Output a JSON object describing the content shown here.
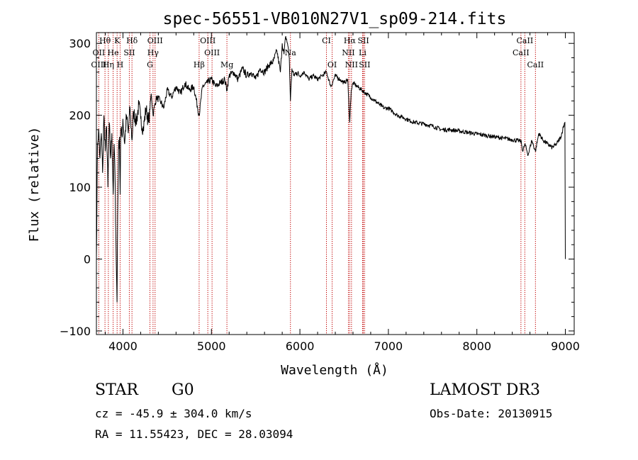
{
  "chart_data": {
    "type": "line",
    "title": "spec-56551-VB010N27V1_sp09-214.fits",
    "xlabel": "Wavelength (Å)",
    "ylabel": "Flux (relative)",
    "xlim": [
      3700,
      9100
    ],
    "ylim": [
      -105,
      315
    ],
    "xticks": [
      4000,
      5000,
      6000,
      7000,
      8000,
      9000
    ],
    "yticks": [
      -100,
      0,
      100,
      200,
      300
    ],
    "series": [
      {
        "name": "flux",
        "x": [
          3700,
          3712,
          3725,
          3740,
          3755,
          3770,
          3785,
          3800,
          3815,
          3830,
          3845,
          3860,
          3875,
          3890,
          3900,
          3910,
          3920,
          3933,
          3940,
          3950,
          3960,
          3968,
          3975,
          3990,
          4000,
          4020,
          4040,
          4060,
          4080,
          4102,
          4120,
          4150,
          4180,
          4200,
          4230,
          4260,
          4290,
          4320,
          4340,
          4360,
          4380,
          4420,
          4460,
          4500,
          4550,
          4600,
          4650,
          4700,
          4750,
          4800,
          4861,
          4900,
          4950,
          5000,
          5050,
          5100,
          5150,
          5175,
          5200,
          5250,
          5300,
          5350,
          5400,
          5450,
          5500,
          5550,
          5600,
          5650,
          5700,
          5740,
          5780,
          5800,
          5820,
          5840,
          5860,
          5880,
          5893,
          5910,
          5930,
          5960,
          6000,
          6050,
          6100,
          6150,
          6200,
          6250,
          6300,
          6350,
          6400,
          6450,
          6500,
          6540,
          6563,
          6580,
          6600,
          6650,
          6700,
          6750,
          6800,
          6850,
          6900,
          6950,
          7000,
          7050,
          7100,
          7150,
          7200,
          7250,
          7300,
          7400,
          7500,
          7600,
          7700,
          7800,
          7900,
          8000,
          8100,
          8200,
          8300,
          8400,
          8498,
          8520,
          8542,
          8580,
          8620,
          8662,
          8700,
          8750,
          8800,
          8850,
          8900,
          8950,
          8980,
          8995,
          9000
        ],
        "y": [
          0,
          160,
          180,
          140,
          175,
          120,
          200,
          150,
          185,
          100,
          190,
          140,
          175,
          90,
          160,
          120,
          30,
          -60,
          60,
          150,
          170,
          90,
          180,
          170,
          195,
          160,
          200,
          175,
          210,
          165,
          205,
          190,
          215,
          195,
          180,
          210,
          190,
          230,
          200,
          215,
          225,
          220,
          210,
          235,
          225,
          240,
          230,
          245,
          235,
          240,
          200,
          240,
          245,
          250,
          240,
          245,
          250,
          235,
          255,
          260,
          250,
          265,
          255,
          260,
          250,
          265,
          260,
          270,
          275,
          290,
          260,
          300,
          285,
          310,
          300,
          280,
          220,
          265,
          255,
          260,
          255,
          260,
          250,
          255,
          250,
          255,
          260,
          240,
          255,
          250,
          245,
          250,
          190,
          235,
          245,
          240,
          235,
          230,
          225,
          220,
          215,
          210,
          210,
          205,
          200,
          198,
          195,
          192,
          190,
          188,
          185,
          180,
          180,
          178,
          176,
          174,
          172,
          170,
          168,
          166,
          164,
          150,
          160,
          145,
          165,
          150,
          175,
          165,
          160,
          155,
          160,
          170,
          185,
          190,
          0
        ]
      }
    ],
    "lines": [
      {
        "label": "Hθ",
        "x": 3797,
        "row": 0
      },
      {
        "label": "K",
        "x": 3934,
        "row": 0
      },
      {
        "label": "Hδ",
        "x": 4102,
        "row": 0
      },
      {
        "label": "OIII",
        "x": 4363,
        "row": 0
      },
      {
        "label": "OIII",
        "x": 4959,
        "row": 0
      },
      {
        "label": "CI",
        "x": 6300,
        "row": 0
      },
      {
        "label": "Hα",
        "x": 6563,
        "row": 0
      },
      {
        "label": "SII",
        "x": 6717,
        "row": 0
      },
      {
        "label": "CaII",
        "x": 8542,
        "row": 0
      },
      {
        "label": "OII",
        "x": 3727,
        "row": 1
      },
      {
        "label": "He",
        "x": 3889,
        "row": 1
      },
      {
        "label": "SII",
        "x": 4072,
        "row": 1
      },
      {
        "label": "Hγ",
        "x": 4340,
        "row": 1
      },
      {
        "label": "OIII",
        "x": 5007,
        "row": 1
      },
      {
        "label": "Na",
        "x": 5893,
        "row": 1
      },
      {
        "label": "NII",
        "x": 6548,
        "row": 1
      },
      {
        "label": "Li",
        "x": 6708,
        "row": 1
      },
      {
        "label": "CaII",
        "x": 8498,
        "row": 1
      },
      {
        "label": "OIII",
        "x": 3727,
        "row": 2
      },
      {
        "label": "Hη",
        "x": 3835,
        "row": 2
      },
      {
        "label": "H",
        "x": 3968,
        "row": 2
      },
      {
        "label": "G",
        "x": 4305,
        "row": 2
      },
      {
        "label": "Hβ",
        "x": 4861,
        "row": 2
      },
      {
        "label": "Mg",
        "x": 5175,
        "row": 2
      },
      {
        "label": "OI",
        "x": 6364,
        "row": 2
      },
      {
        "label": "NII",
        "x": 6583,
        "row": 2
      },
      {
        "label": "SII",
        "x": 6731,
        "row": 2
      },
      {
        "label": "CaII",
        "x": 8662,
        "row": 2
      }
    ]
  },
  "info": {
    "class_label": "STAR",
    "subclass": "G0",
    "redshift": "cz = -45.9 ± 304.0 km/s",
    "coords": "RA =  11.55423, DEC =  28.03094",
    "survey": "LAMOST DR3",
    "obs_date": "Obs-Date: 20130915"
  }
}
